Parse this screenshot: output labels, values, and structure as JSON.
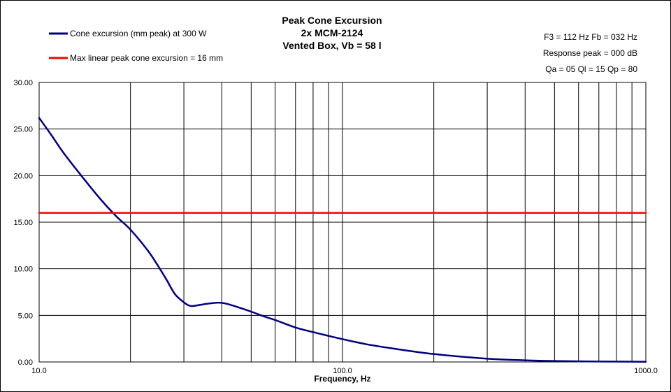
{
  "chart_data": {
    "type": "line",
    "title": [
      "Peak Cone Excursion",
      "2x MCM-2124",
      "Vented Box, Vb = 58 l"
    ],
    "xlabel": "Frequency, Hz",
    "ylabel": "",
    "x_scale": "log",
    "xlim": [
      10,
      1000
    ],
    "ylim": [
      0,
      30
    ],
    "x_tick_labels": [
      "10.0",
      "100.0",
      "1000.0"
    ],
    "y_tick_labels": [
      "0.00",
      "5.00",
      "10.00",
      "15.00",
      "20.00",
      "25.00",
      "30.00"
    ],
    "grid": true,
    "legend_position": "top-left",
    "annotations": [
      "F3 = 112 Hz  Fb = 032 Hz",
      "Response peak = 000 dB",
      "Qa = 05  Ql = 15  Qp = 80"
    ],
    "series": [
      {
        "name": "Cone excursion (mm peak) at 300 W",
        "color": "#000080",
        "x": [
          10,
          11,
          12,
          14,
          16,
          18,
          20,
          23,
          26,
          28,
          30,
          31,
          32,
          35,
          38,
          40,
          42,
          45,
          50,
          55,
          60,
          70,
          80,
          90,
          100,
          120,
          150,
          200,
          300,
          400,
          500,
          700,
          1000
        ],
        "y": [
          26.2,
          24.3,
          22.5,
          19.7,
          17.4,
          15.6,
          14.2,
          11.8,
          9.1,
          7.3,
          6.4,
          6.1,
          6.0,
          6.2,
          6.35,
          6.35,
          6.2,
          5.9,
          5.4,
          4.9,
          4.5,
          3.7,
          3.2,
          2.8,
          2.45,
          1.9,
          1.4,
          0.85,
          0.35,
          0.18,
          0.1,
          0.05,
          0.02
        ]
      },
      {
        "name": "Max linear peak cone excursion = 16 mm",
        "color": "#ff0000",
        "x": [
          10,
          1000
        ],
        "y": [
          16,
          16
        ]
      }
    ]
  }
}
